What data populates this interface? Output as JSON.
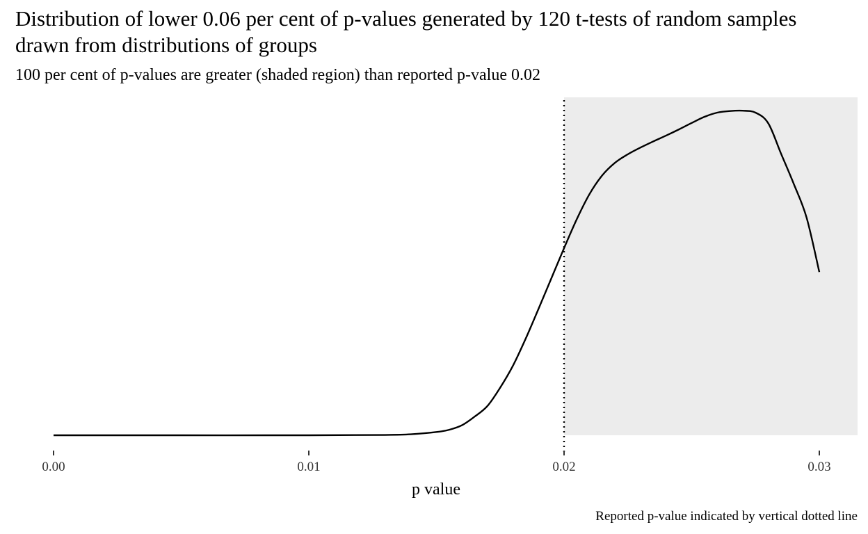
{
  "chart_data": {
    "type": "area",
    "title": "Distribution of lower 0.06 per cent of p-values generated by 120 t-tests of random samples drawn from distributions of groups",
    "subtitle": "100 per cent of p-values are greater (shaded region) than reported p-value 0.02",
    "xlabel": "p value",
    "ylabel": "",
    "caption": "Reported p-value indicated by vertical dotted line",
    "xlim": [
      0.0,
      0.0315
    ],
    "x_ticks": [
      0.0,
      0.01,
      0.02,
      0.03
    ],
    "x_tick_labels": [
      "0.00",
      "0.01",
      "0.02",
      "0.03"
    ],
    "y_axis_shown": false,
    "grid": false,
    "reported_p_value": 0.02,
    "shaded_region": {
      "from": 0.02,
      "to": "right edge"
    },
    "density_relative_max": 1.0,
    "series": [
      {
        "x": [
          0.0,
          0.005,
          0.01,
          0.013,
          0.014,
          0.015,
          0.0155,
          0.016,
          0.0165,
          0.017,
          0.0175,
          0.018,
          0.0185,
          0.019,
          0.0195,
          0.02,
          0.0205,
          0.021,
          0.0215,
          0.022,
          0.0225,
          0.023,
          0.0235,
          0.024,
          0.0245,
          0.025,
          0.0255,
          0.026,
          0.0265,
          0.027,
          0.0275,
          0.028,
          0.0285,
          0.029,
          0.0295,
          0.03
        ],
        "values": [
          0.0,
          0.0,
          0.0,
          0.001,
          0.003,
          0.01,
          0.017,
          0.031,
          0.058,
          0.091,
          0.148,
          0.216,
          0.3,
          0.392,
          0.486,
          0.58,
          0.67,
          0.748,
          0.806,
          0.845,
          0.871,
          0.892,
          0.911,
          0.929,
          0.948,
          0.968,
          0.987,
          1.0,
          1.005,
          1.006,
          1.0,
          0.967,
          0.873,
          0.779,
          0.675,
          0.506
        ]
      }
    ],
    "colors": {
      "line": "#000000",
      "shade": "#ececec",
      "tick_text": "#333333"
    }
  }
}
